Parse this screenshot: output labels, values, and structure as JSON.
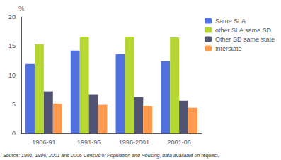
{
  "chart_data": {
    "type": "bar",
    "y_label": "%",
    "annotations": [
      "Source: 1991, 1996, 2001 and 2006 Census of Population and Housing, data available on request."
    ],
    "categories": [
      "1986-91",
      "1991-96",
      "1996-2001",
      "2001-06"
    ],
    "series": [
      {
        "name": "Same SLA",
        "values": [
          11.9,
          14.2,
          13.6,
          12.4
        ]
      },
      {
        "name": "other SLA same SD",
        "values": [
          15.3,
          16.6,
          16.6,
          16.5
        ]
      },
      {
        "name": "Other SD same state",
        "values": [
          7.2,
          6.6,
          6.2,
          5.6
        ]
      },
      {
        "name": "Interstate",
        "values": [
          5.1,
          4.9,
          4.7,
          4.4
        ]
      }
    ],
    "ylim": [
      0,
      20
    ],
    "yticks": [
      0,
      5,
      10,
      15,
      20
    ],
    "grid": false,
    "legend": "upper right"
  }
}
